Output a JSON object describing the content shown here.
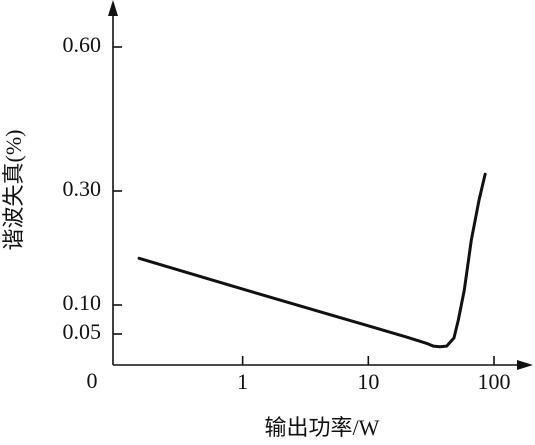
{
  "chart_data": {
    "type": "line",
    "x_label": "输出功率/W",
    "y_label": "谐波失真(%)",
    "x": [
      0.15,
      1,
      5,
      20,
      29,
      33,
      37,
      42,
      48,
      52,
      58,
      66,
      76,
      85
    ],
    "series": [
      {
        "color": "#111111",
        "values": [
          0.182,
          0.128,
          0.083,
          0.045,
          0.034,
          0.029,
          0.028,
          0.029,
          0.043,
          0.074,
          0.126,
          0.214,
          0.284,
          0.335
        ]
      }
    ],
    "xscale": "log",
    "xlim": [
      0.093,
      167
    ],
    "xticks": [
      1,
      10,
      100
    ],
    "ylim": [
      0,
      0.65
    ],
    "yticks": [
      0,
      0.05,
      {
        "value": 0.1,
        "label": "0.10"
      },
      {
        "value": 0.3,
        "label": "0.30"
      },
      {
        "value": 0.6,
        "label": "0.60"
      }
    ],
    "grid": false
  }
}
